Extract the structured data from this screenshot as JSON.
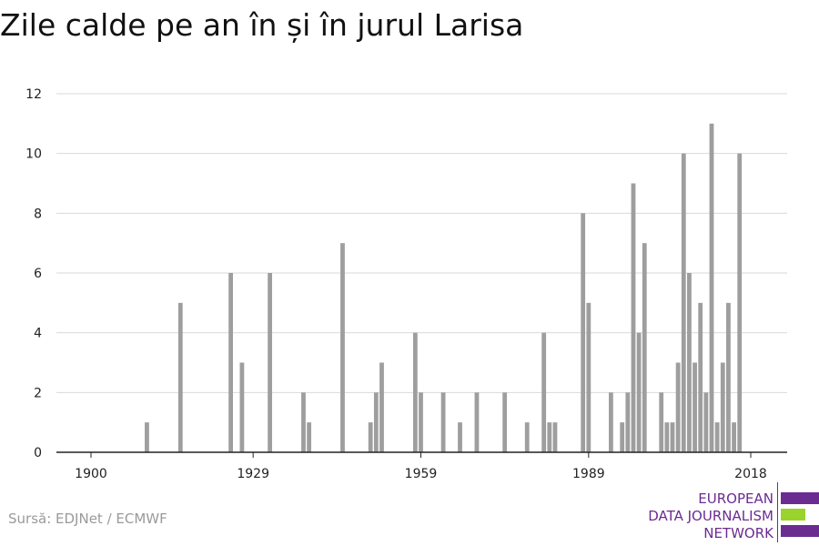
{
  "title": "Zile calde pe an în și în jurul Larisa",
  "source": "Sursă: EDJNet / ECMWF",
  "logo": {
    "lines": [
      "EUROPEAN",
      "DATA JOURNALISM",
      "NETWORK"
    ],
    "colors": {
      "purple": "#6b2c91",
      "green": "#9bd32d"
    }
  },
  "chart_data": {
    "type": "bar",
    "title": "Zile calde pe an în și în jurul Larisa",
    "xlabel": "",
    "ylabel": "",
    "xlim": [
      1900,
      2018
    ],
    "ylim": [
      0,
      12
    ],
    "x_ticks": [
      1900,
      1929,
      1959,
      1989,
      2018
    ],
    "y_ticks": [
      0,
      2,
      4,
      6,
      8,
      10,
      12
    ],
    "grid": true,
    "bar_color": "#9e9e9e",
    "x": [
      1910,
      1916,
      1925,
      1927,
      1932,
      1938,
      1939,
      1945,
      1950,
      1951,
      1952,
      1958,
      1959,
      1963,
      1966,
      1969,
      1974,
      1978,
      1981,
      1982,
      1983,
      1988,
      1989,
      1993,
      1995,
      1996,
      1997,
      1998,
      1999,
      2002,
      2003,
      2004,
      2005,
      2006,
      2007,
      2008,
      2009,
      2010,
      2011,
      2012,
      2013,
      2014,
      2015,
      2016,
      2017
    ],
    "values": [
      1,
      5,
      6,
      3,
      6,
      2,
      1,
      7,
      1,
      2,
      3,
      4,
      2,
      2,
      1,
      2,
      2,
      1,
      4,
      1,
      1,
      8,
      5,
      2,
      1,
      2,
      9,
      4,
      7,
      2,
      1,
      1,
      3,
      10,
      6,
      3,
      5,
      2,
      11,
      1,
      3,
      5,
      1,
      10,
      0
    ]
  }
}
